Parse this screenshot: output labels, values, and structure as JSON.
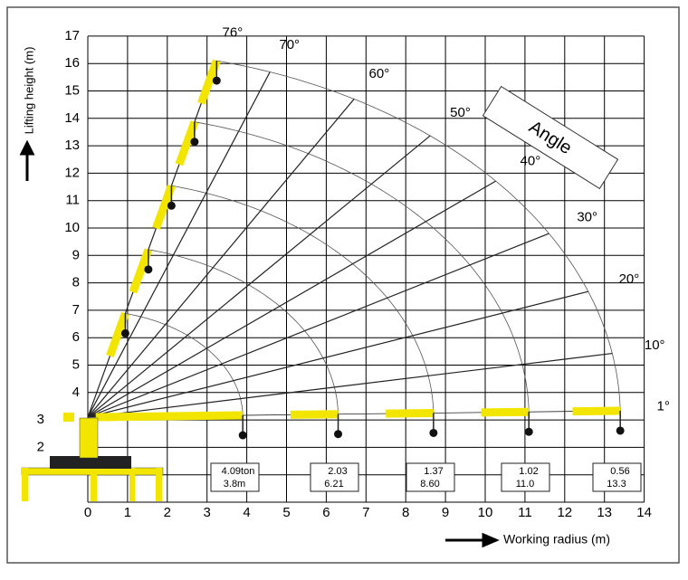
{
  "axes": {
    "x_label": "Working radius (m)",
    "y_label": "Lifting height (m)",
    "xticks": [
      0,
      1,
      2,
      3,
      4,
      5,
      6,
      7,
      8,
      9,
      10,
      11,
      12,
      13,
      14
    ],
    "yticks": [
      2,
      3,
      4,
      5,
      6,
      7,
      8,
      9,
      10,
      11,
      12,
      13,
      14,
      15,
      16,
      17
    ]
  },
  "angle_title": "Angle",
  "angles": [
    {
      "value": 76,
      "label": "76°"
    },
    {
      "value": 70,
      "label": "70°"
    },
    {
      "value": 60,
      "label": "60°"
    },
    {
      "value": 50,
      "label": "50°"
    },
    {
      "value": 40,
      "label": "40°"
    },
    {
      "value": 30,
      "label": "30°"
    },
    {
      "value": 20,
      "label": "20°"
    },
    {
      "value": 10,
      "label": "10°"
    },
    {
      "value": 1,
      "label": "1°"
    }
  ],
  "loads": [
    {
      "load": "4.09ton",
      "radius": "3.8m"
    },
    {
      "load": "2.03",
      "radius": "6.21"
    },
    {
      "load": "1.37",
      "radius": "8.60"
    },
    {
      "load": "1.02",
      "radius": "11.0"
    },
    {
      "load": "0.56",
      "radius": "13.3"
    }
  ]
}
